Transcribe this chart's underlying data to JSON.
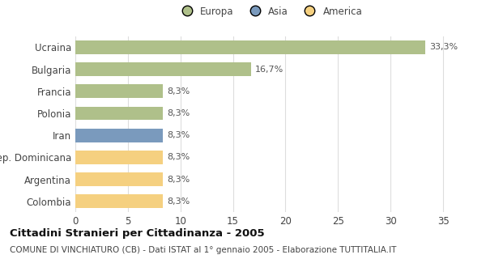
{
  "categories": [
    "Ucraina",
    "Bulgaria",
    "Francia",
    "Polonia",
    "Iran",
    "Rep. Dominicana",
    "Argentina",
    "Colombia"
  ],
  "values": [
    33.3,
    16.7,
    8.3,
    8.3,
    8.3,
    8.3,
    8.3,
    8.3
  ],
  "labels": [
    "33,3%",
    "16,7%",
    "8,3%",
    "8,3%",
    "8,3%",
    "8,3%",
    "8,3%",
    "8,3%"
  ],
  "colors": [
    "#afc08a",
    "#afc08a",
    "#afc08a",
    "#afc08a",
    "#7a9abd",
    "#f5d080",
    "#f5d080",
    "#f5d080"
  ],
  "legend": [
    {
      "label": "Europa",
      "color": "#afc08a"
    },
    {
      "label": "Asia",
      "color": "#7a9abd"
    },
    {
      "label": "America",
      "color": "#f5d080"
    }
  ],
  "xlim": [
    0,
    37
  ],
  "xticks": [
    0,
    5,
    10,
    15,
    20,
    25,
    30,
    35
  ],
  "title": "Cittadini Stranieri per Cittadinanza - 2005",
  "subtitle": "COMUNE DI VINCHIATURO (CB) - Dati ISTAT al 1° gennaio 2005 - Elaborazione TUTTITALIA.IT",
  "background_color": "#ffffff",
  "bar_height": 0.62,
  "label_fontsize": 8,
  "tick_fontsize": 8.5,
  "title_fontsize": 9.5,
  "subtitle_fontsize": 7.5,
  "grid_color": "#dddddd"
}
